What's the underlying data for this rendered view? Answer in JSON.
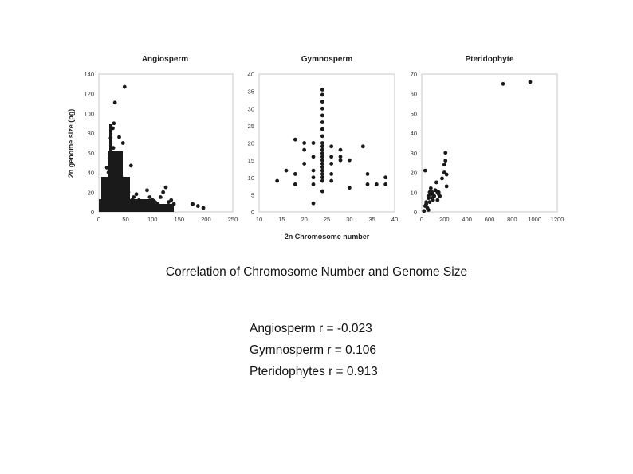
{
  "chart_data": [
    {
      "type": "scatter",
      "title": "Angiosperm",
      "xlabel": "",
      "ylabel": "2n genome size (pg)",
      "xlim": [
        0,
        250
      ],
      "ylim": [
        0,
        140
      ],
      "x_ticks": [
        0,
        50,
        100,
        150,
        200,
        250
      ],
      "y_ticks": [
        0,
        20,
        40,
        60,
        80,
        100,
        120,
        140
      ],
      "grid": false,
      "x": [
        48,
        15,
        30,
        28,
        22,
        38,
        20,
        25,
        27,
        45,
        42,
        18,
        12,
        50,
        55,
        60,
        65,
        70,
        75,
        80,
        85,
        90,
        95,
        100,
        105,
        110,
        115,
        120,
        125,
        130,
        135,
        140,
        175,
        185,
        195,
        10,
        8,
        5,
        32,
        35,
        40,
        24,
        26,
        29,
        31,
        33,
        36,
        20,
        22,
        14,
        16,
        58,
        62,
        68,
        72,
        78,
        88,
        92,
        98,
        102,
        108,
        118,
        6,
        9,
        11,
        44,
        46,
        52,
        56,
        30,
        34,
        21,
        23,
        19,
        17
      ],
      "y": [
        127,
        45,
        111,
        90,
        75,
        76,
        55,
        60,
        65,
        70,
        35,
        40,
        30,
        25,
        20,
        47,
        15,
        18,
        12,
        10,
        8,
        22,
        15,
        12,
        10,
        8,
        15,
        20,
        25,
        10,
        12,
        8,
        8,
        6,
        4,
        20,
        15,
        10,
        40,
        35,
        30,
        50,
        85,
        45,
        38,
        32,
        28,
        30,
        25,
        18,
        22,
        10,
        12,
        9,
        7,
        6,
        5,
        8,
        4,
        6,
        5,
        3,
        5,
        8,
        12,
        20,
        15,
        10,
        8,
        3,
        2,
        5,
        4,
        6,
        7
      ]
    },
    {
      "type": "scatter",
      "title": "Gymnosperm",
      "xlabel": "2n Chromosome number",
      "ylabel": "",
      "xlim": [
        10,
        40
      ],
      "ylim": [
        0,
        40
      ],
      "x_ticks": [
        10,
        15,
        20,
        25,
        30,
        35,
        40
      ],
      "y_ticks": [
        0,
        5,
        10,
        15,
        20,
        25,
        30,
        35,
        40
      ],
      "grid": false,
      "x": [
        14,
        16,
        18,
        18,
        18,
        20,
        20,
        20,
        22,
        22,
        22,
        22,
        22,
        22,
        24,
        24,
        24,
        24,
        24,
        24,
        24,
        24,
        24,
        24,
        24,
        24,
        24,
        24,
        24,
        24,
        24,
        24,
        24,
        24,
        24,
        26,
        26,
        26,
        26,
        26,
        28,
        28,
        28,
        30,
        30,
        33,
        34,
        34,
        36,
        38,
        38
      ],
      "y": [
        9,
        12,
        21,
        11,
        8,
        20,
        18,
        14,
        20,
        16,
        12,
        10,
        8,
        2.5,
        35.5,
        34,
        32,
        30,
        28,
        26,
        24,
        22,
        20,
        18,
        16,
        14,
        13,
        12,
        11,
        10,
        9,
        6,
        17,
        15,
        19,
        19,
        16,
        14,
        11,
        9,
        18,
        16,
        15,
        15,
        7,
        19,
        11,
        8,
        8,
        10,
        8
      ]
    },
    {
      "type": "scatter",
      "title": "Pteridophyte",
      "xlabel": "",
      "ylabel": "",
      "xlim": [
        0,
        1200
      ],
      "ylim": [
        0,
        70
      ],
      "x_ticks": [
        0,
        200,
        400,
        600,
        800,
        1000,
        1200
      ],
      "y_ticks": [
        0,
        10,
        20,
        30,
        40,
        50,
        60,
        70
      ],
      "grid": false,
      "x": [
        720,
        960,
        30,
        40,
        60,
        70,
        80,
        90,
        100,
        110,
        120,
        130,
        140,
        150,
        160,
        180,
        200,
        200,
        210,
        210,
        220,
        220,
        50,
        60,
        70,
        80,
        90,
        100,
        110,
        120,
        20,
        30,
        40,
        60,
        140,
        150
      ],
      "y": [
        65,
        66,
        21,
        4,
        8,
        10,
        12,
        7,
        9,
        8,
        11,
        15,
        6,
        10,
        8,
        17,
        24,
        20,
        30,
        26,
        13,
        19,
        2,
        1,
        5,
        9,
        10,
        6,
        8,
        11,
        0.5,
        3,
        5,
        7,
        10,
        9
      ]
    }
  ],
  "caption": "Correlation of Chromosome Number and Genome Size",
  "stats": [
    "Angiosperm r = -0.023",
    "Gymnosperm r = 0.106",
    "Pteridophytes r = 0.913"
  ]
}
